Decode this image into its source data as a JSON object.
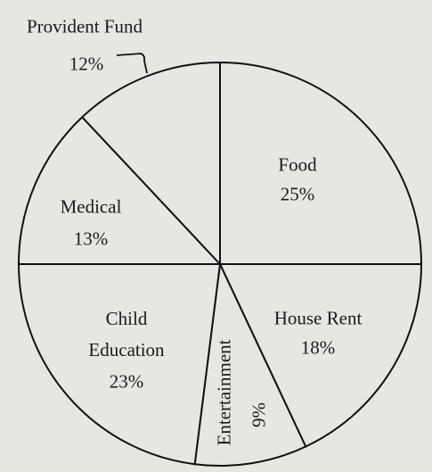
{
  "chart_data": {
    "type": "pie",
    "categories": [
      "Food",
      "House Rent",
      "Entertainment",
      "Child Education",
      "Medical",
      "Provident Fund"
    ],
    "values": [
      25,
      18,
      9,
      23,
      13,
      12
    ],
    "value_labels": [
      "25%",
      "18%",
      "9%",
      "23%",
      "13%",
      "12%"
    ],
    "color": "#e6e6e3"
  }
}
